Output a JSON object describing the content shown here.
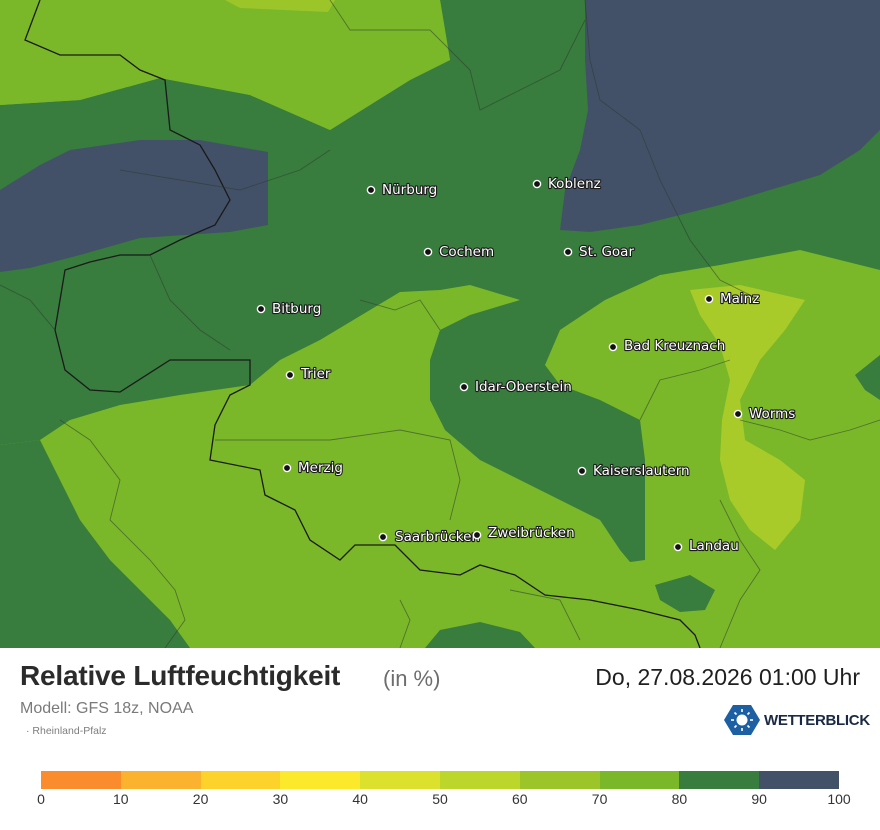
{
  "map": {
    "colors": {
      "band_70_80": "#7ab829",
      "band_60_70": "#9cc52a",
      "band_80_90": "#387c3e",
      "band_90_100": "#435168",
      "band_50_60": "#a8cb2a"
    },
    "cities": [
      {
        "name": "Nürburg"
      },
      {
        "name": "Koblenz"
      },
      {
        "name": "Cochem"
      },
      {
        "name": "St. Goar"
      },
      {
        "name": "Mainz"
      },
      {
        "name": "Bitburg"
      },
      {
        "name": "Bad Kreuznach"
      },
      {
        "name": "Trier"
      },
      {
        "name": "Idar-Oberstein"
      },
      {
        "name": "Worms"
      },
      {
        "name": "Merzig"
      },
      {
        "name": "Kaiserslautern"
      },
      {
        "name": "Saarbrücken"
      },
      {
        "name": "Zweibrücken"
      },
      {
        "name": "Landau"
      }
    ]
  },
  "footer": {
    "title": "Relative Luftfeuchtigkeit",
    "unit": "(in %)",
    "datetime": "Do, 27.08.2026 01:00 Uhr",
    "model": "Modell: GFS 18z, NOAA",
    "region": "· Rheinland-Pfalz",
    "brand": "WETTERBLICK"
  },
  "legend": {
    "colors": [
      "#fa8c2d",
      "#fbb22f",
      "#fcd22b",
      "#fde92b",
      "#dbe12c",
      "#bcd62b",
      "#9cc52a",
      "#7ab829",
      "#387c3e",
      "#435168"
    ],
    "ticks": [
      "0",
      "10",
      "20",
      "30",
      "40",
      "50",
      "60",
      "70",
      "80",
      "90",
      "100"
    ]
  }
}
